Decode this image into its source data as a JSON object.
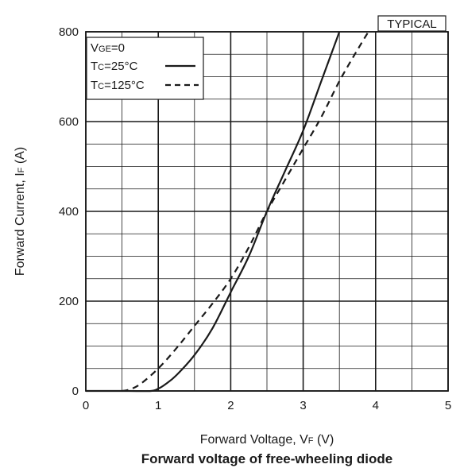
{
  "chart_data": {
    "type": "line",
    "title": "Forward voltage of free-wheeling diode",
    "badge": "TYPICAL",
    "xlabel": {
      "main": "Forward Voltage, V",
      "sub": "F",
      "unit": " (V)"
    },
    "ylabel": {
      "main": "Forward Current, I",
      "sub": "F",
      "unit": " (A)"
    },
    "xlim": [
      0,
      5
    ],
    "ylim": [
      0,
      800
    ],
    "x_major_ticks": [
      0,
      1,
      2,
      3,
      4,
      5
    ],
    "x_minor_step": 0.5,
    "y_major_ticks": [
      0,
      200,
      400,
      600,
      800
    ],
    "y_minor_step": 50,
    "x_tick_labels": [
      "0",
      "1",
      "2",
      "3",
      "4",
      "5"
    ],
    "y_tick_labels": [
      "0",
      "200",
      "400",
      "600",
      "800"
    ],
    "grid": true,
    "legend": {
      "placement": "top-left",
      "header": {
        "main": "V",
        "sub": "GE",
        "rest": "=0"
      },
      "items": [
        {
          "main": "T",
          "sub": "C",
          "rest": "=25°C",
          "style": "solid"
        },
        {
          "main": "T",
          "sub": "C",
          "rest": "=125°C",
          "style": "dashed"
        }
      ]
    },
    "series": [
      {
        "name": "Tc=25°C",
        "style": "solid",
        "points": [
          [
            0,
            0
          ],
          [
            0.6,
            0
          ],
          [
            0.9,
            0
          ],
          [
            1.0,
            5
          ],
          [
            1.1,
            15
          ],
          [
            1.25,
            35
          ],
          [
            1.5,
            80
          ],
          [
            1.75,
            140
          ],
          [
            2.0,
            220
          ],
          [
            2.25,
            300
          ],
          [
            2.5,
            400
          ],
          [
            2.75,
            490
          ],
          [
            3.0,
            580
          ],
          [
            3.25,
            690
          ],
          [
            3.5,
            800
          ]
        ]
      },
      {
        "name": "Tc=125°C",
        "style": "dashed",
        "points": [
          [
            0.5,
            0
          ],
          [
            0.6,
            3
          ],
          [
            0.75,
            15
          ],
          [
            1.0,
            50
          ],
          [
            1.25,
            95
          ],
          [
            1.5,
            145
          ],
          [
            1.75,
            195
          ],
          [
            2.0,
            250
          ],
          [
            2.25,
            320
          ],
          [
            2.5,
            400
          ],
          [
            2.75,
            470
          ],
          [
            3.0,
            540
          ],
          [
            3.25,
            610
          ],
          [
            3.5,
            690
          ],
          [
            3.75,
            760
          ],
          [
            3.9,
            800
          ]
        ]
      }
    ],
    "colors": {
      "line": "#1a1a1a",
      "grid": "#1a1a1a",
      "background": "#ffffff"
    }
  }
}
